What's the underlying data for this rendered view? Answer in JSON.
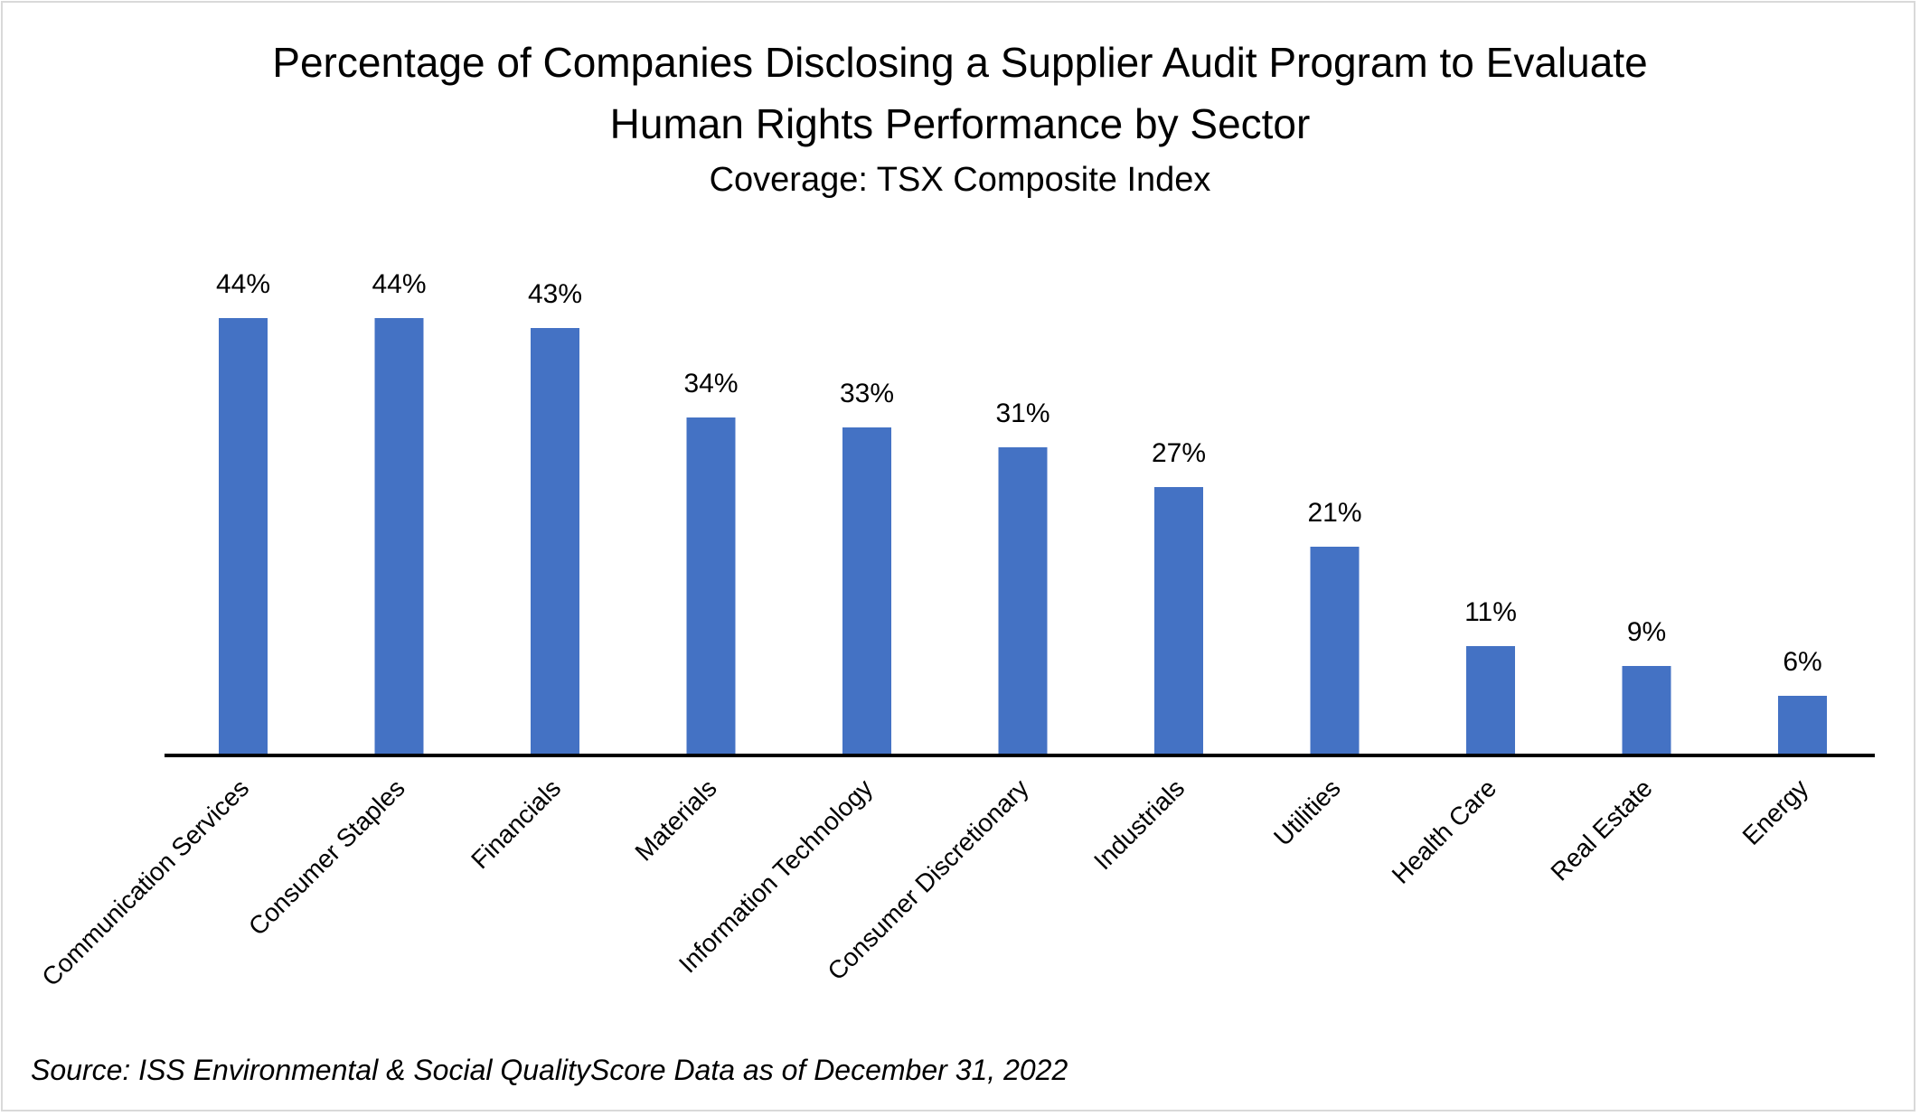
{
  "chart_data": {
    "type": "bar",
    "title_lines": [
      "Percentage of Companies Disclosing a Supplier Audit Program to Evaluate",
      "Human Rights Performance by Sector"
    ],
    "subtitle": "Coverage: TSX Composite Index",
    "categories": [
      "Communication Services",
      "Consumer Staples",
      "Financials",
      "Materials",
      "Information Technology",
      "Consumer Discretionary",
      "Industrials",
      "Utilities",
      "Health Care",
      "Real Estate",
      "Energy"
    ],
    "values": [
      44,
      44,
      43,
      34,
      33,
      31,
      27,
      21,
      11,
      9,
      6
    ],
    "data_labels": [
      "44%",
      "44%",
      "43%",
      "34%",
      "33%",
      "31%",
      "27%",
      "21%",
      "11%",
      "9%",
      "6%"
    ],
    "unit": "%",
    "ylim": [
      0,
      50
    ],
    "grid": false,
    "legend": "none",
    "bar_color": "#4472C4",
    "source": "Source: ISS Environmental & Social QualityScore Data as of December 31, 2022"
  }
}
